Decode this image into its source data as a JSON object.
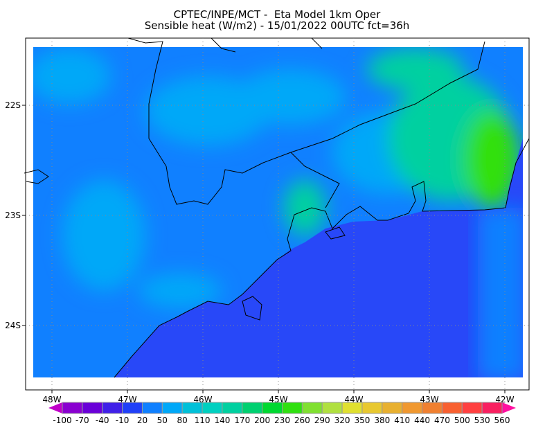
{
  "header": {
    "title_line1": "CPTEC/INPE/MCT -  Eta Model 1km Oper",
    "title_line2": "Sensible heat (W/m2) - 15/01/2022 00UTC fct=36h"
  },
  "map": {
    "variable": "Sensible heat",
    "units": "W/m2",
    "lon_ticks": [
      "48W",
      "47W",
      "46W",
      "45W",
      "44W",
      "43W",
      "42W"
    ],
    "lat_ticks": [
      "22S",
      "23S",
      "24S"
    ],
    "lon_values": [
      -48,
      -47,
      -46,
      -45,
      -44,
      -43,
      -42
    ],
    "lat_values": [
      -22,
      -23,
      -24
    ],
    "grid": true,
    "colors": {
      "ocean": "#2848f8",
      "ocean_offshore": "#1080ff",
      "land": "#1080ff",
      "land_warm": "#00a8f8",
      "land_hot": "#00d0a0",
      "land_hottest": "#30e010"
    }
  },
  "colorbar": {
    "labels": [
      "-100",
      "-70",
      "-40",
      "-10",
      "20",
      "50",
      "80",
      "110",
      "140",
      "170",
      "200",
      "230",
      "260",
      "290",
      "320",
      "350",
      "380",
      "410",
      "440",
      "470",
      "500",
      "530",
      "560"
    ],
    "colors": [
      "#8a00d0",
      "#6a00d8",
      "#4020e8",
      "#2040f8",
      "#1080ff",
      "#00a8f8",
      "#00c0d8",
      "#00d0c0",
      "#00d0a0",
      "#00d070",
      "#00d830",
      "#30e010",
      "#80e030",
      "#b0e040",
      "#e0e030",
      "#e8c830",
      "#e8b030",
      "#f09830",
      "#f08030",
      "#f86030",
      "#ff4040",
      "#f82060"
    ],
    "under_color": "#c000c8",
    "over_color": "#ff10a0"
  }
}
